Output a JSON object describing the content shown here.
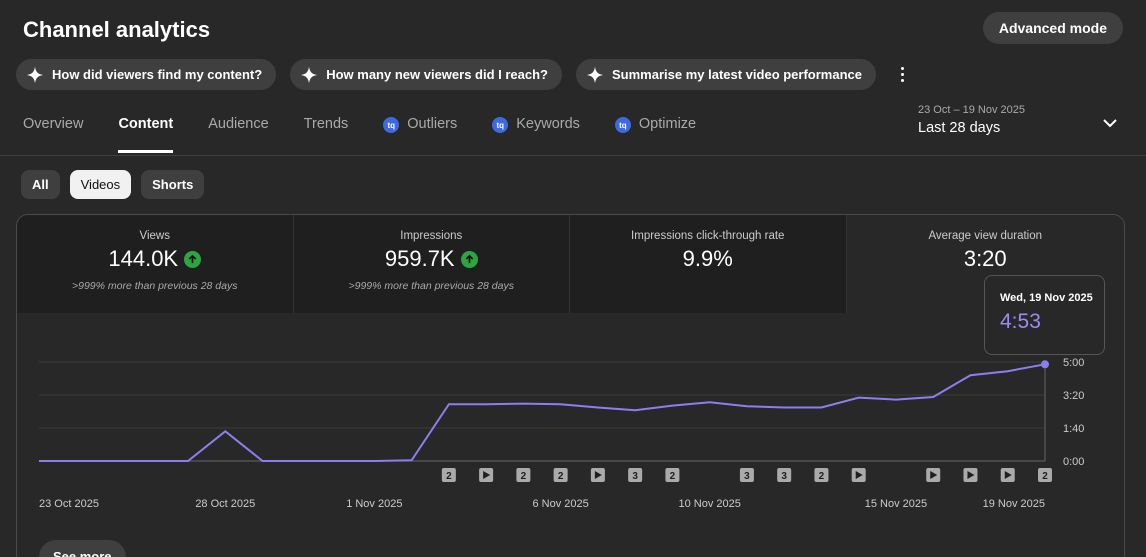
{
  "header": {
    "title": "Channel analytics",
    "advanced_mode": "Advanced mode"
  },
  "prompts": [
    "How did viewers find my content?",
    "How many new viewers did I reach?",
    "Summarise my latest video performance"
  ],
  "tabs": [
    {
      "label": "Overview",
      "badge": ""
    },
    {
      "label": "Content",
      "badge": ""
    },
    {
      "label": "Audience",
      "badge": ""
    },
    {
      "label": "Trends",
      "badge": ""
    },
    {
      "label": "Outliers",
      "badge": "tq"
    },
    {
      "label": "Keywords",
      "badge": "tq"
    },
    {
      "label": "Optimize",
      "badge": "tq"
    }
  ],
  "active_tab": "Content",
  "date_range": {
    "range": "23 Oct – 19 Nov 2025",
    "label": "Last 28 days"
  },
  "filter_chips": [
    "All",
    "Videos",
    "Shorts"
  ],
  "active_chip": "Videos",
  "metrics": [
    {
      "label": "Views",
      "value": "144.0K",
      "trend": "up",
      "comparison": ">999% more than previous 28 days"
    },
    {
      "label": "Impressions",
      "value": "959.7K",
      "trend": "up",
      "comparison": ">999% more than previous 28 days"
    },
    {
      "label": "Impressions click-through rate",
      "value": "9.9%",
      "trend": "",
      "comparison": ""
    },
    {
      "label": "Average view duration",
      "value": "3:20",
      "trend": "",
      "comparison": ""
    }
  ],
  "tooltip": {
    "date": "Wed, 19 Nov 2025",
    "value": "4:53"
  },
  "colors": {
    "line": "#8b7ff0",
    "up": "#2ba640",
    "tooltip_value": "#9b8cf5"
  },
  "chart_data": {
    "type": "line",
    "series": [
      {
        "values": [
          0,
          0,
          0,
          0,
          0,
          90,
          0,
          0,
          0,
          0,
          2,
          172,
          172,
          174,
          172,
          162,
          154,
          168,
          178,
          166,
          162,
          162,
          192,
          186,
          194,
          260,
          272,
          293
        ]
      }
    ],
    "x_ticks": [
      "23 Oct 2025",
      "28 Oct 2025",
      "1 Nov 2025",
      "6 Nov 2025",
      "10 Nov 2025",
      "15 Nov 2025",
      "19 Nov 2025"
    ],
    "x_tick_index": [
      0,
      5,
      9,
      14,
      18,
      23,
      27
    ],
    "y_ticks": [
      "0:00",
      "1:40",
      "3:20",
      "5:00"
    ],
    "y_tick_values": [
      0,
      100,
      200,
      300
    ],
    "ylim": [
      0,
      300
    ],
    "markers": [
      {
        "index": 11,
        "kind": "count",
        "label": "2"
      },
      {
        "index": 12,
        "kind": "play",
        "label": ""
      },
      {
        "index": 13,
        "kind": "count",
        "label": "2"
      },
      {
        "index": 14,
        "kind": "count",
        "label": "2"
      },
      {
        "index": 15,
        "kind": "play",
        "label": ""
      },
      {
        "index": 16,
        "kind": "count",
        "label": "3"
      },
      {
        "index": 17,
        "kind": "count",
        "label": "2"
      },
      {
        "index": 19,
        "kind": "count",
        "label": "3"
      },
      {
        "index": 20,
        "kind": "count",
        "label": "3"
      },
      {
        "index": 21,
        "kind": "count",
        "label": "2"
      },
      {
        "index": 22,
        "kind": "play",
        "label": ""
      },
      {
        "index": 24,
        "kind": "play",
        "label": ""
      },
      {
        "index": 25,
        "kind": "play",
        "label": ""
      },
      {
        "index": 26,
        "kind": "play",
        "label": ""
      },
      {
        "index": 27,
        "kind": "count",
        "label": "2"
      }
    ]
  },
  "see_more": "See more"
}
